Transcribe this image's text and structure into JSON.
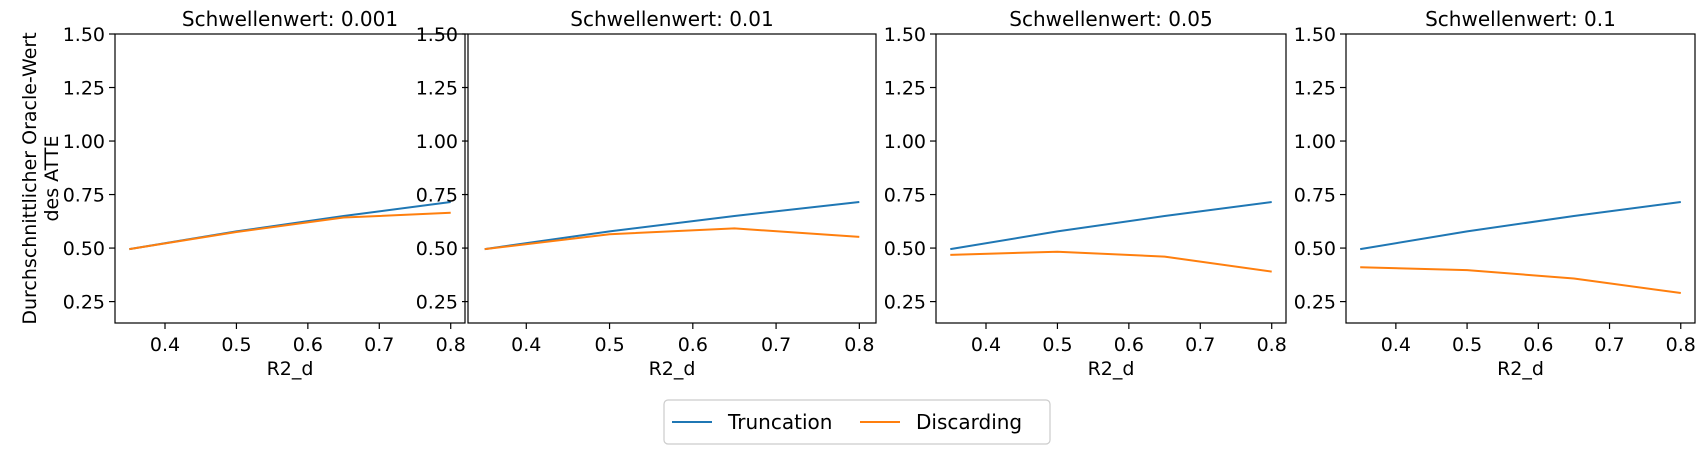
{
  "chart_data": [
    {
      "type": "line",
      "title": "Schwellenwert: 0.001",
      "xlabel": "R2_d",
      "ylabel_lines": [
        "Durchschnittlicher Oracle-Wert",
        "des ATTE"
      ],
      "x": [
        0.35,
        0.5,
        0.65,
        0.8
      ],
      "xticks": [
        "0.4",
        "0.5",
        "0.6",
        "0.7",
        "0.8"
      ],
      "yticks": [
        "0.25",
        "0.50",
        "0.75",
        "1.00",
        "1.25",
        "1.50"
      ],
      "xlim": [
        0.33,
        0.82
      ],
      "ylim": [
        0.15,
        1.5
      ],
      "series": [
        {
          "name": "Truncation",
          "color": "#1f77b4",
          "values": [
            0.495,
            0.578,
            0.65,
            0.715
          ]
        },
        {
          "name": "Discarding",
          "color": "#ff7f0e",
          "values": [
            0.495,
            0.575,
            0.643,
            0.665
          ]
        }
      ]
    },
    {
      "type": "line",
      "title": "Schwellenwert: 0.01",
      "xlabel": "R2_d",
      "x": [
        0.35,
        0.5,
        0.65,
        0.8
      ],
      "xticks": [
        "0.4",
        "0.5",
        "0.6",
        "0.7",
        "0.8"
      ],
      "yticks": [
        "0.25",
        "0.50",
        "0.75",
        "1.00",
        "1.25",
        "1.50"
      ],
      "xlim": [
        0.33,
        0.82
      ],
      "ylim": [
        0.15,
        1.5
      ],
      "series": [
        {
          "name": "Truncation",
          "color": "#1f77b4",
          "values": [
            0.495,
            0.578,
            0.65,
            0.715
          ]
        },
        {
          "name": "Discarding",
          "color": "#ff7f0e",
          "values": [
            0.495,
            0.565,
            0.592,
            0.552
          ]
        }
      ]
    },
    {
      "type": "line",
      "title": "Schwellenwert: 0.05",
      "xlabel": "R2_d",
      "x": [
        0.35,
        0.5,
        0.65,
        0.8
      ],
      "xticks": [
        "0.4",
        "0.5",
        "0.6",
        "0.7",
        "0.8"
      ],
      "yticks": [
        "0.25",
        "0.50",
        "0.75",
        "1.00",
        "1.25",
        "1.50"
      ],
      "xlim": [
        0.33,
        0.82
      ],
      "ylim": [
        0.15,
        1.5
      ],
      "series": [
        {
          "name": "Truncation",
          "color": "#1f77b4",
          "values": [
            0.495,
            0.578,
            0.65,
            0.715
          ]
        },
        {
          "name": "Discarding",
          "color": "#ff7f0e",
          "values": [
            0.468,
            0.483,
            0.46,
            0.39
          ]
        }
      ]
    },
    {
      "type": "line",
      "title": "Schwellenwert: 0.1",
      "xlabel": "R2_d",
      "x": [
        0.35,
        0.5,
        0.65,
        0.8
      ],
      "xticks": [
        "0.4",
        "0.5",
        "0.6",
        "0.7",
        "0.8"
      ],
      "yticks": [
        "0.25",
        "0.50",
        "0.75",
        "1.00",
        "1.25",
        "1.50"
      ],
      "xlim": [
        0.33,
        0.82
      ],
      "ylim": [
        0.15,
        1.5
      ],
      "series": [
        {
          "name": "Truncation",
          "color": "#1f77b4",
          "values": [
            0.495,
            0.578,
            0.65,
            0.715
          ]
        },
        {
          "name": "Discarding",
          "color": "#ff7f0e",
          "values": [
            0.41,
            0.397,
            0.358,
            0.29
          ]
        }
      ]
    }
  ],
  "legend": {
    "placement": "bottom-center",
    "items": [
      {
        "label": "Truncation",
        "color": "#1f77b4"
      },
      {
        "label": "Discarding",
        "color": "#ff7f0e"
      }
    ]
  }
}
